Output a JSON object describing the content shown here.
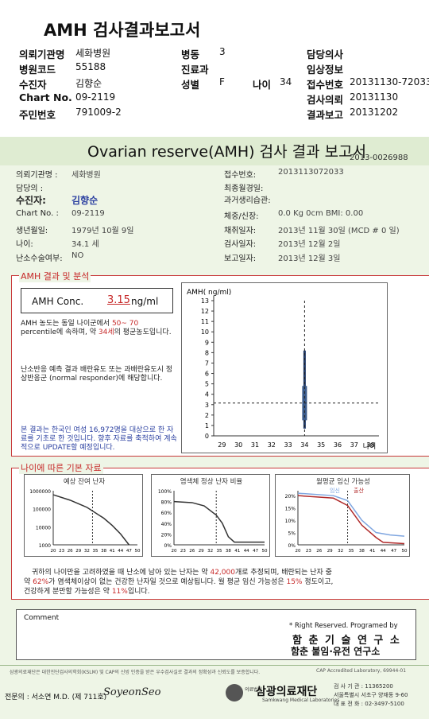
{
  "header": {
    "title": "AMH 검사결과보고서",
    "rows": [
      [
        {
          "l": "의뢰기관명",
          "v": "세화병원"
        },
        {
          "l": "병동",
          "v": "3"
        },
        {
          "l": "담당의사",
          "v": ""
        }
      ],
      [
        {
          "l": "병원코드",
          "v": "55188"
        },
        {
          "l": "진료과",
          "v": ""
        },
        {
          "l": "임상정보",
          "v": ""
        }
      ],
      [
        {
          "l": "수진자",
          "v": "김향순"
        },
        {
          "l": "성별",
          "v": "F"
        },
        {
          "l": "접수번호",
          "v": "20131130-72033"
        }
      ],
      [
        {
          "l": "Chart No.",
          "v": "09-2119"
        },
        {
          "l": "",
          "v": ""
        },
        {
          "l": "검사의뢰",
          "v": "20131130"
        }
      ],
      [
        {
          "l": "주민번호",
          "v": "791009-2"
        },
        {
          "l": "",
          "v": ""
        },
        {
          "l": "결과보고",
          "v": "20131202"
        }
      ]
    ],
    "age_label": "나이",
    "age_value": "34"
  },
  "report": {
    "title": "Ovarian reserve(AMH) 검사 결과 보고서",
    "report_no": "2013-0026988",
    "left": [
      {
        "l": "의뢰기관명 :",
        "v": "세화병원"
      },
      {
        "l": "담당의 :",
        "v": ""
      },
      {
        "l": "수진자:",
        "v": "김향순"
      },
      {
        "l": "Chart No. :",
        "v": "09-2119"
      },
      {
        "l": "생년월일:",
        "v": "1979년 10월 9일"
      },
      {
        "l": "나이:",
        "v": "34.1 세"
      },
      {
        "l": "난소수술여부:",
        "v": "NO"
      }
    ],
    "right": [
      {
        "l": "접수번호:",
        "v": "2013113072033"
      },
      {
        "l": "최종월경일:",
        "v": ""
      },
      {
        "l": "과거생리습관:",
        "v": ""
      },
      {
        "l": "체중/신장:",
        "v": "0.0 Kg      0cm   BMI:   0.00"
      },
      {
        "l": "채취일자:",
        "v": "2013년 11월 30일 (MCD #  0 일)"
      },
      {
        "l": "검사일자:",
        "v": "2013년 12월 2일"
      },
      {
        "l": "보고일자:",
        "v": "2013년 12월 3일"
      }
    ]
  },
  "amh": {
    "section_title": "AMH 결과 및 분석",
    "conc_label": "AMH Conc.",
    "conc_value": "3.15",
    "conc_unit": "ng/ml",
    "p1a": "AMH 농도는 동일 나이군에서",
    "p1_range": "50~ 70",
    "p1b": "percentile에 속하며, 약",
    "p1_age": "34세",
    "p1c": "의 평균농도입니다.",
    "p2": "난소반응 예측 결과 배란유도 또는 과배란유도시 정상반응군 (normal responder)에 해당합니다.",
    "p3": "본 결과는 한국인 여성 16,972명을 대상으로 한 자료를 기초로 한 것입니다. 향후 자료를 축적하여 계속적으로 UPDATE할 예정입니다."
  },
  "chart_data": [
    {
      "type": "box",
      "ylabel": "AMH( ng/ml)",
      "xlabel": "나이",
      "x_ticks": [
        "29",
        "30",
        "31",
        "32",
        "33",
        "34",
        "35",
        "36",
        "37",
        "38"
      ],
      "y_ticks": [
        "0",
        "1",
        "2",
        "3",
        "4",
        "5",
        "6",
        "7",
        "8",
        "9",
        "10",
        "11",
        "12",
        "13"
      ],
      "ylim": [
        0,
        13
      ],
      "box": {
        "x": 34,
        "low": 0.7,
        "high": 8.2,
        "q1": 1.5,
        "q3": 4.8,
        "patient_value": 3.15
      }
    },
    {
      "type": "line",
      "title": "예상 잔여 난자",
      "log_scale": true,
      "y_ticks": [
        "1000000",
        "100000",
        "10000",
        "1000"
      ],
      "x_ticks": [
        "20",
        "23",
        "26",
        "29",
        "32",
        "35",
        "38",
        "41",
        "44",
        "47",
        "50"
      ],
      "x": [
        20,
        26,
        32,
        38,
        41,
        44,
        47
      ],
      "y": [
        600000,
        300000,
        120000,
        30000,
        12000,
        4000,
        1000
      ]
    },
    {
      "type": "line",
      "title": "염색체 정상 난자 비율",
      "y_ticks": [
        "0%",
        "20%",
        "40%",
        "60%",
        "80%",
        "100%"
      ],
      "x_ticks": [
        "20",
        "23",
        "26",
        "29",
        "32",
        "35",
        "38",
        "41",
        "44",
        "47",
        "50"
      ],
      "x": [
        20,
        26,
        30,
        34,
        36,
        38,
        40,
        41,
        44,
        50
      ],
      "y": [
        80,
        78,
        72,
        55,
        40,
        15,
        5,
        5,
        5,
        5
      ]
    },
    {
      "type": "line",
      "title": "월평균 임신 가능성",
      "legend": [
        "임신",
        "출산"
      ],
      "y_ticks": [
        "0%",
        "5%",
        "10%",
        "15%",
        "20%"
      ],
      "x_ticks": [
        "20",
        "23",
        "26",
        "29",
        "32",
        "35",
        "38",
        "41",
        "44",
        "47",
        "50"
      ],
      "series": [
        {
          "name": "임신",
          "x": [
            20,
            30,
            34,
            38,
            42,
            46,
            50
          ],
          "y": [
            21,
            20,
            18,
            10,
            5,
            4,
            3.5
          ]
        },
        {
          "name": "출산",
          "x": [
            20,
            30,
            34,
            38,
            42,
            44,
            50
          ],
          "y": [
            20,
            19,
            16,
            8,
            3,
            1,
            0.5
          ]
        }
      ]
    }
  ],
  "stats": {
    "section_title": "나이에 따른 기본 자료",
    "line1a": "귀하의 나이만을 고려하였을 때 난소에 남아 있는 난자는 약",
    "eggs": "42,000",
    "line1b": "개로 추정되며, 배란되는 난자 중",
    "line2a": "약",
    "pct": "62%",
    "line2b": "가 염색체이상이 없는 건강한 난자일 것으로 예상됩니다. 월 평균 임신 가능성은",
    "preg": "15%",
    "line2c": "정도이고,",
    "line3a": "건강하게 분만할 가능성은 약",
    "birth": "11%",
    "line3b": "입니다."
  },
  "comment": {
    "label": "Comment"
  },
  "rights": "* Right Reserved. Programed by",
  "inst1": "함 춘 기 술 연 구 소",
  "inst2": "함춘 불임·유전 연구소",
  "fine": "삼광의료재단은 대한진단검사의학회(KSLM) 및 CAP의 신빙 인증을 받은 우수검사실로 결과의 정확성과 신뢰도를 보증합니다.",
  "cap": "CAP Accredited Laboratory, 69944-01",
  "specialist": "전문의 : 서소연 M.D. (제 711호)",
  "sign": "SoyeonSeo",
  "org": "삼광의료재단",
  "org_sub": "의료법인",
  "org_en": "Samkwang Medical Laboratories",
  "addr": [
    "검 사 기 관 : 11365200",
    "서울특별시 서초구 양재동 9-60",
    "대 표 전 화 : 02-3497-5100"
  ]
}
